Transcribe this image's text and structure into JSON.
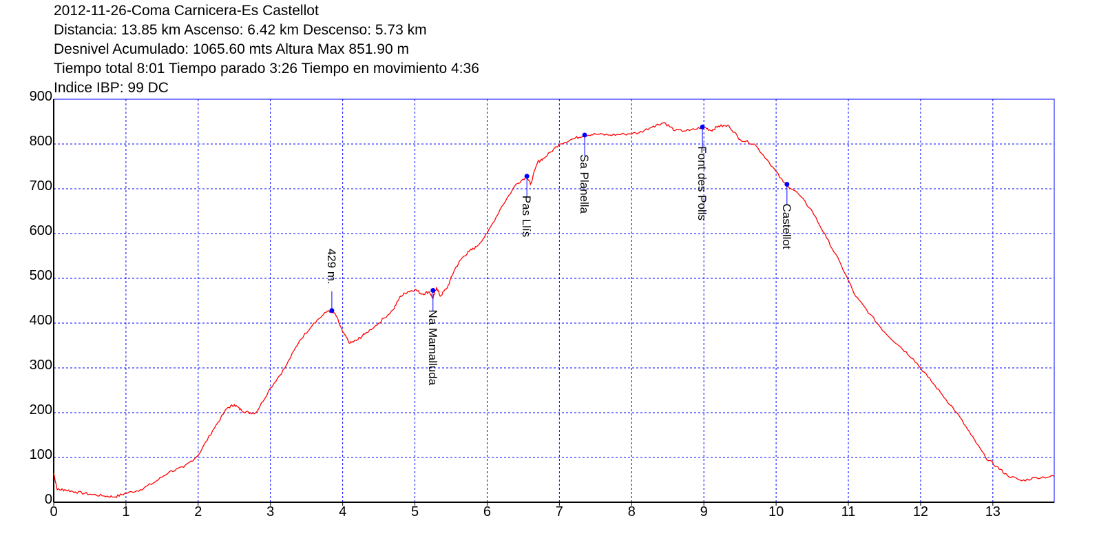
{
  "header": {
    "line1": "2012-11-26-Coma Carnicera-Es Castellot",
    "line2": "Distancia: 13.85 km Ascenso: 6.42 km Descenso: 5.73 km",
    "line3": "Desnivel Acumulado: 1065.60 mts  Altura Max 851.90 m",
    "line4": "Tiempo total 8:01 Tiempo parado 3:26 Tiempo en movimiento 4:36",
    "line5": "Indice IBP: 99 DC"
  },
  "colors": {
    "profile": "#ff0000",
    "frame": "#0000ff",
    "grid": "#0000ff",
    "waypoint": "#0000ff"
  },
  "chart_data": {
    "type": "line",
    "title": "2012-11-26-Coma Carnicera-Es Castellot",
    "xlabel": "",
    "ylabel": "",
    "xlim": [
      0,
      13.85
    ],
    "ylim": [
      0,
      900
    ],
    "grid": true,
    "x_ticks": [
      "0",
      "1",
      "2",
      "3",
      "4",
      "5",
      "6",
      "7",
      "8",
      "9",
      "10",
      "11",
      "12",
      "13"
    ],
    "y_ticks": [
      "0",
      "100",
      "200",
      "300",
      "400",
      "500",
      "600",
      "700",
      "800",
      "900"
    ],
    "series": [
      {
        "x": [
          0,
          0.05,
          0.15,
          0.3,
          0.5,
          0.7,
          0.85,
          1.0,
          1.2,
          1.4,
          1.6,
          1.8,
          2.0,
          2.2,
          2.4,
          2.5,
          2.6,
          2.7,
          2.8,
          3.0,
          3.2,
          3.4,
          3.6,
          3.8,
          3.9,
          4.0,
          4.1,
          4.2,
          4.3,
          4.5,
          4.7,
          4.8,
          4.9,
          5.0,
          5.1,
          5.2,
          5.25,
          5.3,
          5.35,
          5.45,
          5.55,
          5.65,
          5.75,
          5.85,
          6.0,
          6.2,
          6.4,
          6.55,
          6.6,
          6.7,
          6.8,
          7.0,
          7.2,
          7.35,
          7.5,
          7.7,
          7.9,
          8.1,
          8.3,
          8.45,
          8.6,
          8.8,
          9.0,
          9.1,
          9.2,
          9.35,
          9.5,
          9.7,
          9.9,
          10.1,
          10.3,
          10.5,
          10.7,
          10.9,
          11.1,
          11.3,
          11.5,
          11.7,
          11.9,
          12.1,
          12.3,
          12.5,
          12.7,
          12.9,
          13.05,
          13.2,
          13.4,
          13.6,
          13.85
        ],
        "y": [
          65,
          28,
          28,
          23,
          18,
          14,
          12,
          20,
          28,
          45,
          68,
          78,
          105,
          160,
          210,
          218,
          205,
          200,
          200,
          255,
          300,
          360,
          400,
          428,
          420,
          380,
          355,
          362,
          375,
          400,
          430,
          460,
          470,
          475,
          465,
          470,
          455,
          480,
          460,
          480,
          520,
          545,
          560,
          570,
          600,
          660,
          710,
          728,
          710,
          760,
          770,
          800,
          812,
          820,
          822,
          820,
          822,
          825,
          840,
          848,
          830,
          830,
          838,
          830,
          840,
          840,
          810,
          800,
          760,
          715,
          690,
          650,
          590,
          530,
          460,
          420,
          380,
          350,
          320,
          280,
          240,
          200,
          150,
          100,
          80,
          60,
          48,
          55,
          58
        ]
      }
    ],
    "waypoints": [
      {
        "label": "429 m.",
        "x": 3.85,
        "y": 428
      },
      {
        "label": "Na Mamalluda",
        "x": 5.25,
        "y": 473
      },
      {
        "label": "Pas Llís",
        "x": 6.55,
        "y": 728
      },
      {
        "label": "Sa Planella",
        "x": 7.35,
        "y": 820
      },
      {
        "label": "Font des Polls",
        "x": 8.98,
        "y": 838
      },
      {
        "label": "Castellot",
        "x": 10.15,
        "y": 710
      }
    ]
  }
}
